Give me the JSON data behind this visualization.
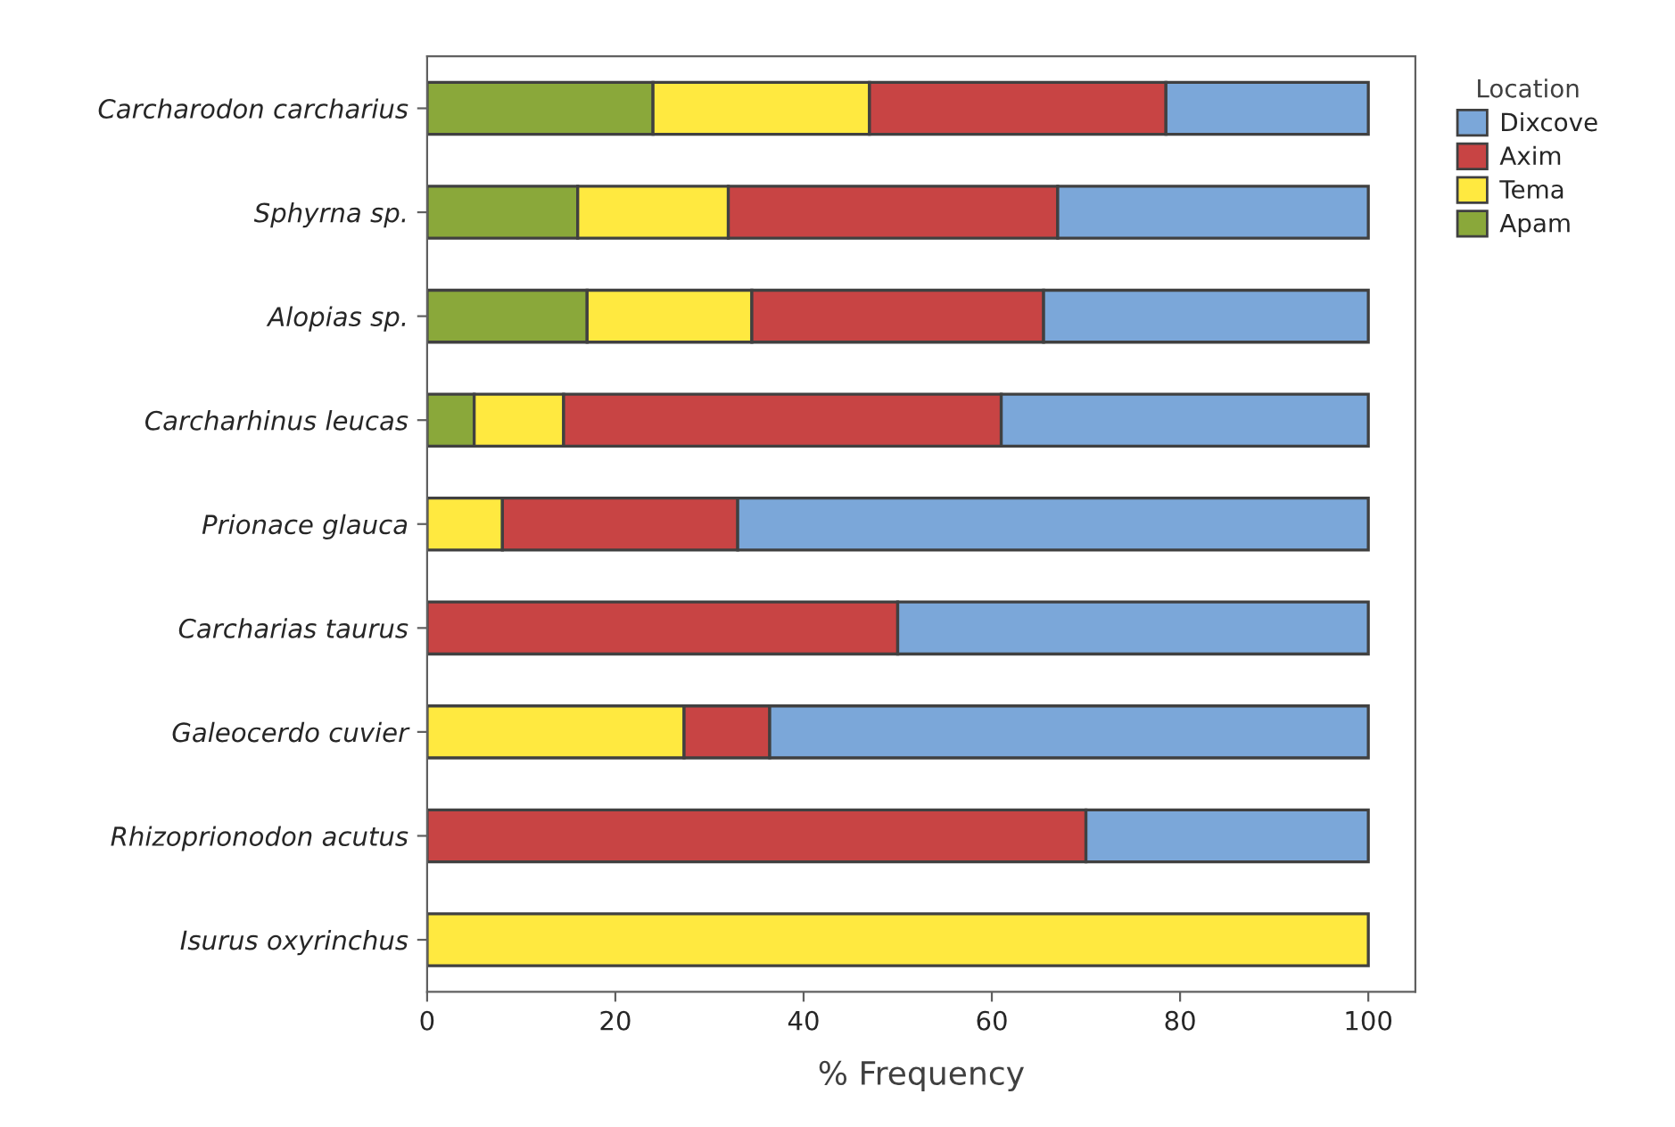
{
  "chart_data": {
    "type": "bar",
    "orientation": "horizontal",
    "stacked": true,
    "categories": [
      "Carcharodon carcharius",
      "Sphyrna sp.",
      "Alopias sp.",
      "Carcharhinus leucas",
      "Prionace glauca",
      "Carcharias taurus",
      "Galeocerdo cuvier",
      "Rhizoprionodon acutus",
      "Isurus oxyrinchus"
    ],
    "series": [
      {
        "name": "Apam",
        "color": "#8aa83a",
        "values": [
          24,
          16,
          17,
          5,
          0,
          0,
          0,
          0,
          0
        ]
      },
      {
        "name": "Tema",
        "color": "#ffe940",
        "values": [
          23,
          16,
          17.5,
          9.5,
          8,
          0,
          27.3,
          0,
          100
        ]
      },
      {
        "name": "Axim",
        "color": "#c84444",
        "values": [
          31.5,
          35,
          31,
          46.5,
          25,
          50,
          9.1,
          70,
          0
        ]
      },
      {
        "name": "Dixcove",
        "color": "#7ba7d9",
        "values": [
          21.5,
          33,
          34.5,
          39,
          67,
          50,
          63.6,
          30,
          0
        ]
      }
    ],
    "xlabel": "% Frequency",
    "legend_title": "Location",
    "legend": "top right",
    "xlim": [
      0,
      105
    ],
    "xticks": [
      0,
      20,
      40,
      60,
      80,
      100
    ],
    "grid": false
  }
}
